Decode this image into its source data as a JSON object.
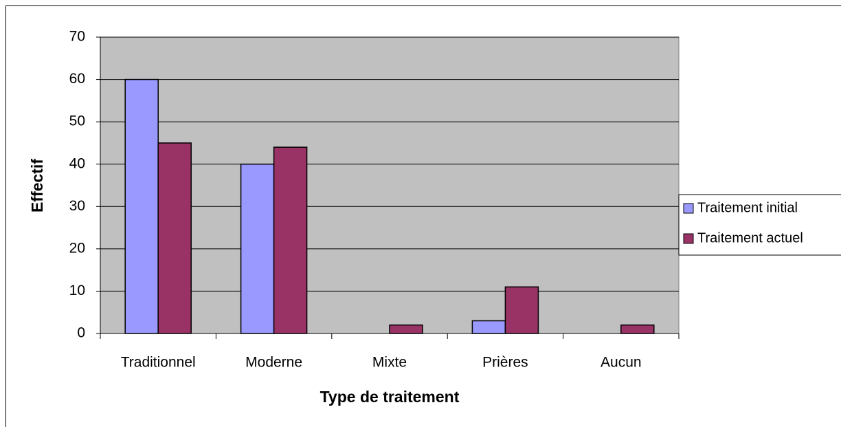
{
  "chart_data": {
    "type": "bar",
    "xlabel": "Type de traitement",
    "ylabel": "Effectif",
    "categories": [
      "Traditionnel",
      "Moderne",
      "Mixte",
      "Prières",
      "Aucun"
    ],
    "series": [
      {
        "name": "Traitement initial",
        "color": "#9999ff",
        "values": [
          60,
          40,
          0,
          3,
          0
        ]
      },
      {
        "name": "Traitement actuel",
        "color": "#993366",
        "values": [
          45,
          44,
          2,
          11,
          2
        ]
      }
    ],
    "ylim": [
      0,
      70
    ],
    "yticks": [
      0,
      10,
      20,
      30,
      40,
      50,
      60,
      70
    ],
    "grid": true,
    "legend": "right"
  }
}
